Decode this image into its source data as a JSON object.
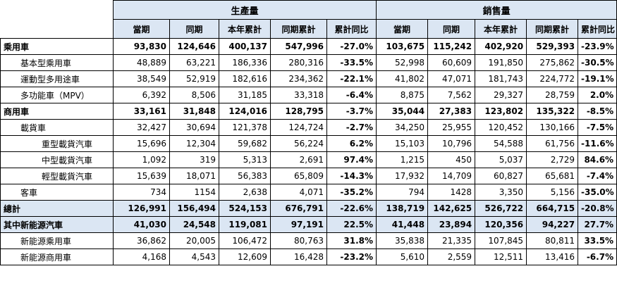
{
  "header": {
    "group_production": "生產量",
    "group_sales": "銷售量",
    "columns": [
      "當期",
      "同期",
      "本年累計",
      "同期累計",
      "累計同比",
      "當期",
      "同期",
      "本年累計",
      "同期累計",
      "累計同比"
    ]
  },
  "rows": [
    {
      "label": "乘用車",
      "cells": [
        "93,830",
        "124,646",
        "400,137",
        "547,996",
        "-27.0%",
        "103,675",
        "115,242",
        "402,920",
        "529,393",
        "-23.9%"
      ]
    },
    {
      "label": "基本型乘用車",
      "cells": [
        "48,889",
        "63,221",
        "186,336",
        "280,316",
        "-33.5%",
        "52,998",
        "60,609",
        "191,850",
        "275,862",
        "-30.5%"
      ]
    },
    {
      "label": "運動型多用途車",
      "cells": [
        "38,549",
        "52,919",
        "182,616",
        "234,362",
        "-22.1%",
        "41,802",
        "47,071",
        "181,743",
        "224,772",
        "-19.1%"
      ]
    },
    {
      "label": "多功能車（MPV）",
      "cells": [
        "6,392",
        "8,506",
        "31,185",
        "33,318",
        "-6.4%",
        "8,875",
        "7,562",
        "29,327",
        "28,759",
        "2.0%"
      ]
    },
    {
      "label": "商用車",
      "cells": [
        "33,161",
        "31,848",
        "124,016",
        "128,795",
        "-3.7%",
        "35,044",
        "27,383",
        "123,802",
        "135,322",
        "-8.5%"
      ]
    },
    {
      "label": "載貨車",
      "cells": [
        "32,427",
        "30,694",
        "121,378",
        "124,724",
        "-2.7%",
        "34,250",
        "25,955",
        "120,452",
        "130,166",
        "-7.5%"
      ]
    },
    {
      "label": "重型載貨汽車",
      "cells": [
        "15,696",
        "12,304",
        "59,682",
        "56,224",
        "6.2%",
        "15,103",
        "10,796",
        "54,588",
        "61,756",
        "-11.6%"
      ]
    },
    {
      "label": "中型載貨汽車",
      "cells": [
        "1,092",
        "319",
        "5,313",
        "2,691",
        "97.4%",
        "1,215",
        "450",
        "5,037",
        "2,729",
        "84.6%"
      ]
    },
    {
      "label": "輕型載貨汽車",
      "cells": [
        "15,639",
        "18,071",
        "56,383",
        "65,809",
        "-14.3%",
        "17,932",
        "14,709",
        "60,827",
        "65,681",
        "-7.4%"
      ]
    },
    {
      "label": "客車",
      "cells": [
        "734",
        "1154",
        "2,638",
        "4,071",
        "-35.2%",
        "794",
        "1428",
        "3,350",
        "5,156",
        "-35.0%"
      ]
    },
    {
      "label": "總計",
      "cells": [
        "126,991",
        "156,494",
        "524,153",
        "676,791",
        "-22.6%",
        "138,719",
        "142,625",
        "526,722",
        "664,715",
        "-20.8%"
      ]
    },
    {
      "label": "其中新能源汽車",
      "cells": [
        "41,030",
        "24,548",
        "119,081",
        "97,191",
        "22.5%",
        "41,448",
        "23,894",
        "120,356",
        "94,227",
        "27.7%"
      ]
    },
    {
      "label": "新能源乘用車",
      "cells": [
        "36,862",
        "20,005",
        "106,472",
        "80,763",
        "31.8%",
        "35,838",
        "21,335",
        "107,845",
        "80,811",
        "33.5%"
      ]
    },
    {
      "label": "新能源商用車",
      "cells": [
        "4,168",
        "4,543",
        "12,609",
        "16,428",
        "-23.2%",
        "5,610",
        "2,559",
        "12,511",
        "13,416",
        "-6.7%"
      ]
    }
  ]
}
